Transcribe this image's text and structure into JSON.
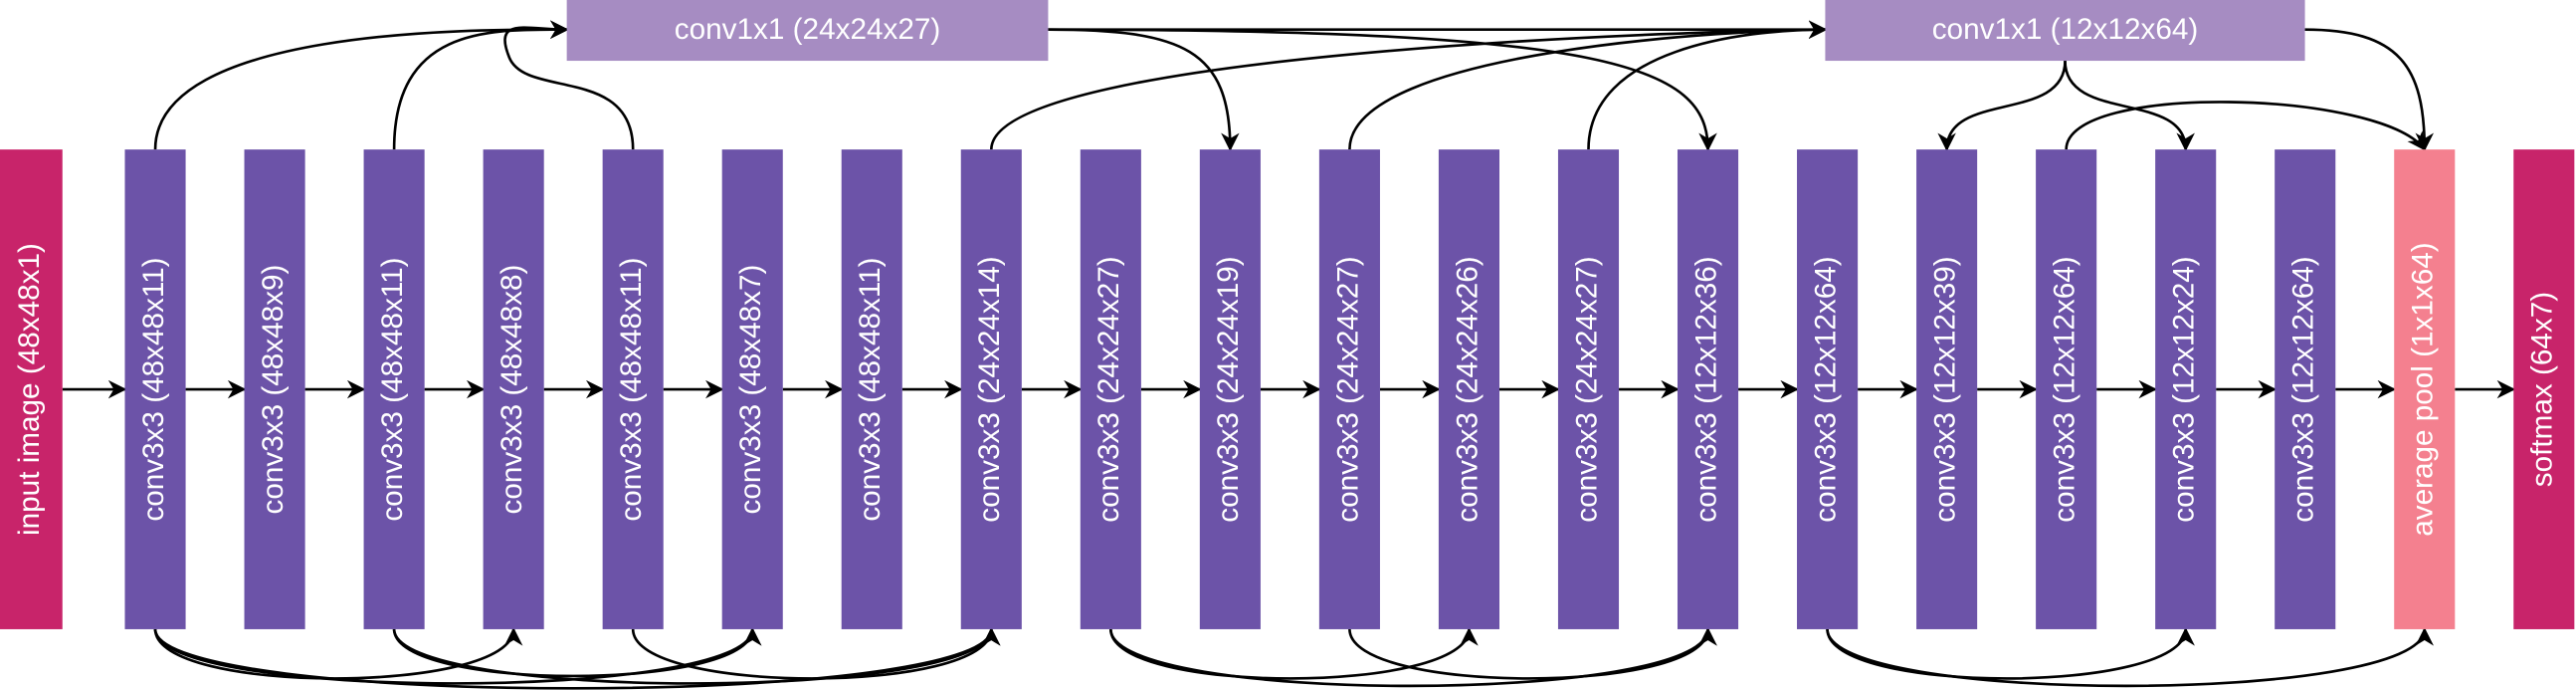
{
  "nodes": [
    {
      "label": "input image (48x48x1)"
    },
    {
      "label": "conv3x3 (48x48x11)"
    },
    {
      "label": "conv3x3 (48x48x9)"
    },
    {
      "label": "conv3x3 (48x48x11)"
    },
    {
      "label": "conv3x3 (48x48x8)"
    },
    {
      "label": "conv3x3 (48x48x11)"
    },
    {
      "label": "conv3x3 (48x48x7)"
    },
    {
      "label": "conv3x3 (48x48x11)"
    },
    {
      "label": "conv3x3 (24x24x14)"
    },
    {
      "label": "conv3x3 (24x24x27)"
    },
    {
      "label": "conv3x3 (24x24x19)"
    },
    {
      "label": "conv3x3 (24x24x27)"
    },
    {
      "label": "conv3x3 (24x24x26)"
    },
    {
      "label": "conv3x3 (24x24x27)"
    },
    {
      "label": "conv3x3 (12x12x36)"
    },
    {
      "label": "conv3x3 (12x12x64)"
    },
    {
      "label": "conv3x3 (12x12x39)"
    },
    {
      "label": "conv3x3 (12x12x64)"
    },
    {
      "label": "conv3x3 (12x12x24)"
    },
    {
      "label": "conv3x3 (12x12x64)"
    },
    {
      "label": "average pool (1x1x64)"
    },
    {
      "label": "softmax (64x7)"
    }
  ],
  "side_nodes": [
    {
      "label": "conv1x1 (24x24x27)"
    },
    {
      "label": "conv1x1 (12x12x64)"
    }
  ]
}
